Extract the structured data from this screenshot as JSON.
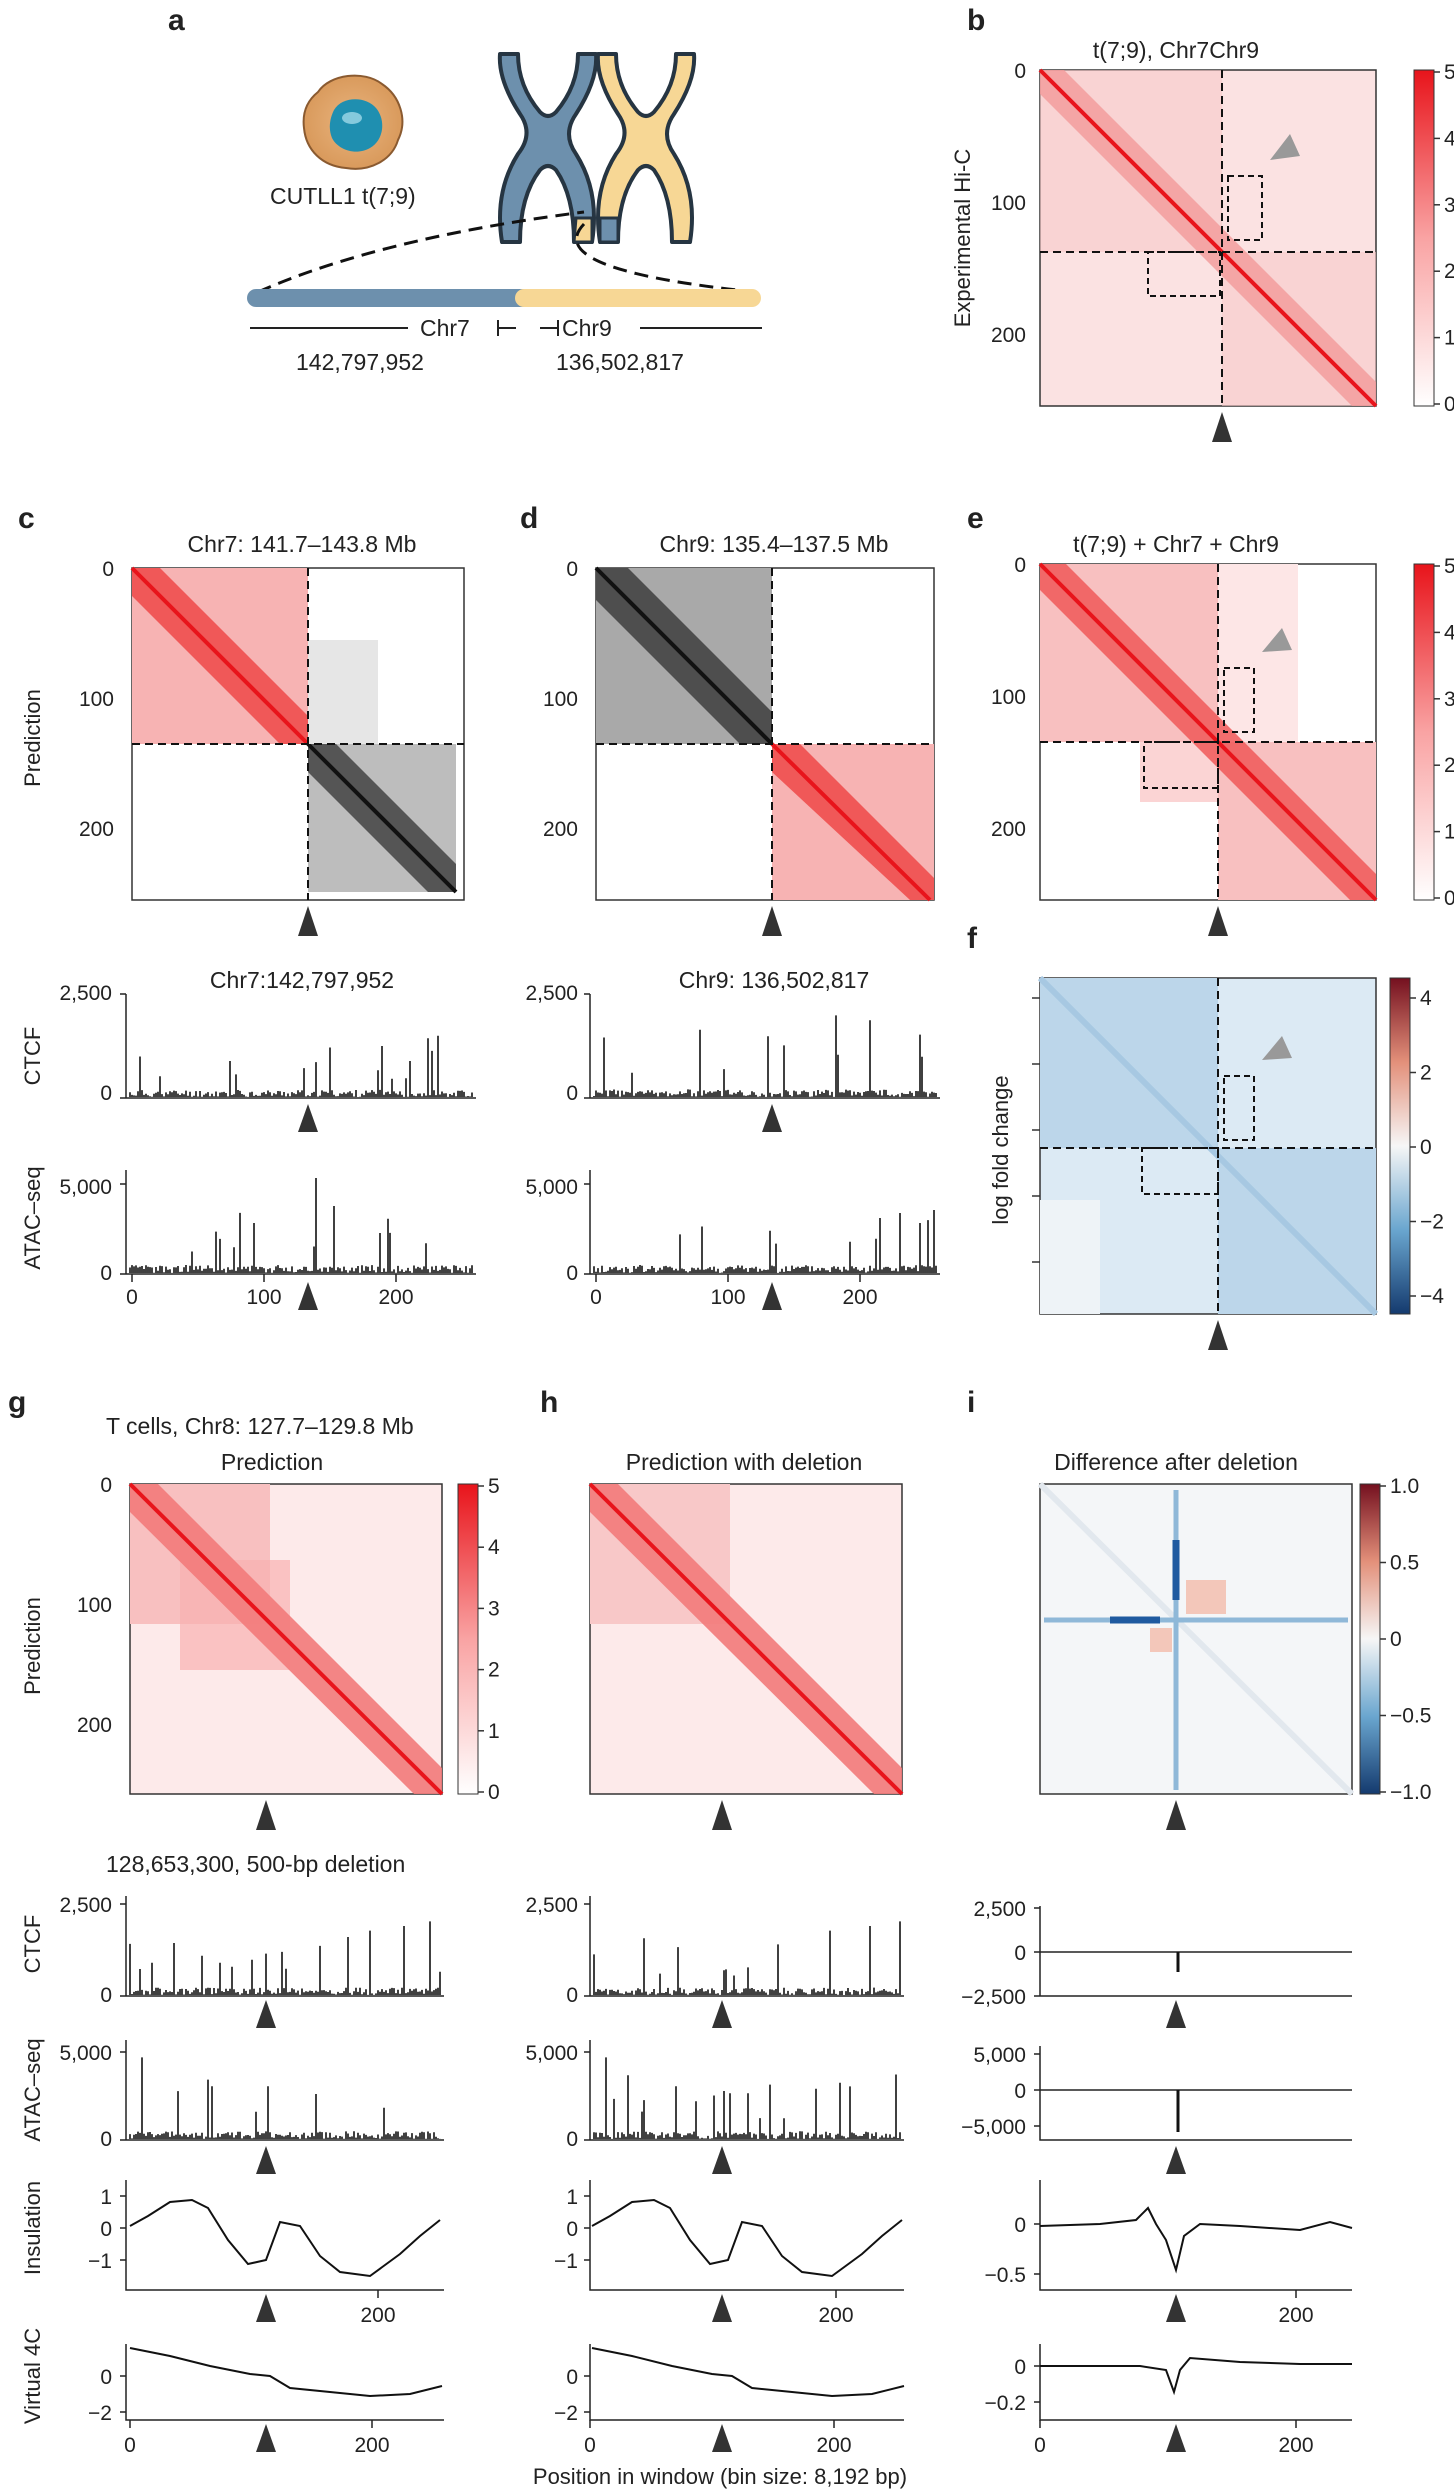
{
  "panel_a": {
    "label": "a",
    "cell_label": "CUTLL1 t(7;9)",
    "chr7_label": "Chr7",
    "chr9_label": "Chr9",
    "chr7_coord": "142,797,952",
    "chr9_coord": "136,502,817",
    "colors": {
      "chr7": "#6d90ad",
      "chr9": "#f7d795"
    }
  },
  "panel_b": {
    "label": "b",
    "title": "t(7;9), Chr7Chr9",
    "ylabel": "Experimental Hi-C",
    "ticks": [
      "0",
      "100",
      "200"
    ],
    "cbar_ticks": [
      "5",
      "4",
      "3",
      "2",
      "1",
      "0"
    ]
  },
  "panel_c": {
    "label": "c",
    "title": "Chr7: 141.7–143.8 Mb",
    "ylabel": "Prediction",
    "ticks": [
      "0",
      "100",
      "200"
    ],
    "track_title": "Chr7:142,797,952"
  },
  "panel_d": {
    "label": "d",
    "title": "Chr9: 135.4–137.5 Mb",
    "ticks": [
      "0",
      "100",
      "200"
    ],
    "track_title": "Chr9: 136,502,817"
  },
  "panel_e": {
    "label": "e",
    "title": "t(7;9) + Chr7 + Chr9",
    "ticks": [
      "0",
      "100",
      "200"
    ],
    "cbar_ticks": [
      "5",
      "4",
      "3",
      "2",
      "1",
      "0"
    ]
  },
  "panel_f": {
    "label": "f",
    "ylabel": "log fold change",
    "cbar_ticks": [
      "4",
      "2",
      "0",
      "−2",
      "−4"
    ]
  },
  "tracks_cd": {
    "ctcf_label": "CTCF",
    "ctcf_ticks": [
      "2,500",
      "0"
    ],
    "atac_label": "ATAC–seq",
    "atac_ticks": [
      "5,000",
      "0"
    ],
    "x_ticks": [
      "0",
      "100",
      "200"
    ]
  },
  "panel_g": {
    "label": "g",
    "title_line1": "T cells, Chr8: 127.7–129.8 Mb",
    "title": "Prediction",
    "ylabel": "Prediction",
    "ticks": [
      "0",
      "100",
      "200"
    ],
    "cbar_ticks": [
      "5",
      "4",
      "3",
      "2",
      "1",
      "0"
    ],
    "deletion_text": "128,653,300, 500-bp deletion"
  },
  "panel_h": {
    "label": "h",
    "title": "Prediction with deletion"
  },
  "panel_i": {
    "label": "i",
    "title": "Difference after deletion",
    "cbar_ticks": [
      "1.0",
      "0.5",
      "0",
      "−0.5",
      "−1.0"
    ]
  },
  "tracks_ghi": {
    "ctcf_label": "CTCF",
    "ctcf_ticks": [
      "2,500",
      "0"
    ],
    "ctcf_diff_ticks": [
      "2,500",
      "0",
      "−2,500"
    ],
    "atac_label": "ATAC–seq",
    "atac_ticks": [
      "5,000",
      "0"
    ],
    "atac_diff_ticks": [
      "5,000",
      "0",
      "−5,000"
    ],
    "ins_label": "Insulation",
    "ins_ticks": [
      "1",
      "0",
      "−1"
    ],
    "ins_diff_ticks": [
      "0",
      "−0.5"
    ],
    "v4c_label": "Virtual 4C",
    "v4c_ticks": [
      "0",
      "−2"
    ],
    "v4c_diff_ticks": [
      "0",
      "−0.2"
    ],
    "x_ticks_200": [
      "200"
    ],
    "x_ticks_full": [
      "0",
      "200"
    ]
  },
  "xlabel": "Position in window (bin size: 8,192 bp)"
}
